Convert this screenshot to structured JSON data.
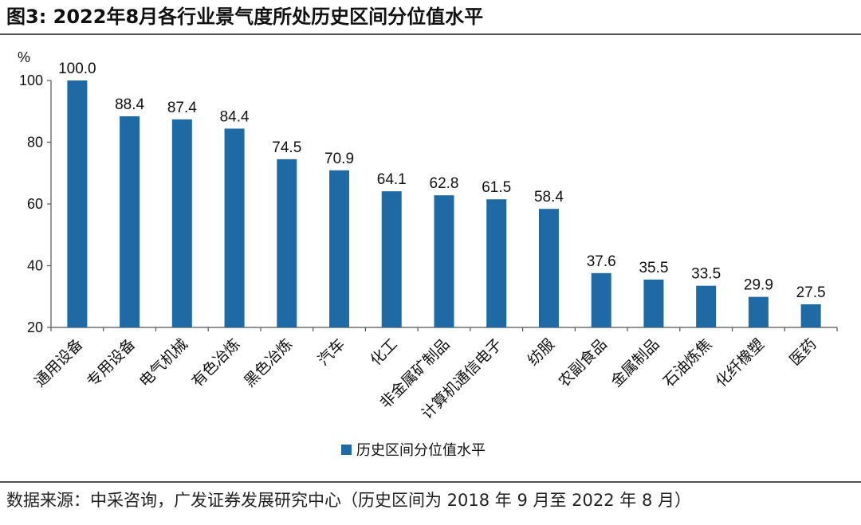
{
  "figure": {
    "title": "图3:  2022年8月各行业景气度所处历史区间分位值水平",
    "source": "数据来源：中采咨询，广发证券发展研究中心（历史区间为 2018 年 9 月至 2022 年 8 月）"
  },
  "colors": {
    "bar": "#1f6aa5",
    "axis": "#555555",
    "text": "#111111"
  },
  "chart_data": {
    "type": "bar",
    "title": "2022年8月各行业景气度所处历史区间分位值水平",
    "xlabel": "",
    "ylabel": "%",
    "ylim": [
      20,
      100
    ],
    "yticks": [
      20,
      40,
      60,
      80,
      100
    ],
    "grid": false,
    "legend_position": "bottom-center",
    "categories": [
      "通用设备",
      "专用设备",
      "电气机械",
      "有色冶炼",
      "黑色冶炼",
      "汽车",
      "化工",
      "非金属矿制品",
      "计算机通信电子",
      "纺服",
      "农副食品",
      "金属制品",
      "石油炼焦",
      "化纤橡塑",
      "医药"
    ],
    "series": [
      {
        "name": "历史区间分位值水平",
        "values": [
          100.0,
          88.4,
          87.4,
          84.4,
          74.5,
          70.9,
          64.1,
          62.8,
          61.5,
          58.4,
          37.6,
          35.5,
          33.5,
          29.9,
          27.5
        ],
        "labels": [
          "100.0",
          "88.4",
          "87.4",
          "84.4",
          "74.5",
          "70.9",
          "64.1",
          "62.8",
          "61.5",
          "58.4",
          "37.6",
          "35.5",
          "33.5",
          "29.9",
          "27.5"
        ]
      }
    ]
  }
}
